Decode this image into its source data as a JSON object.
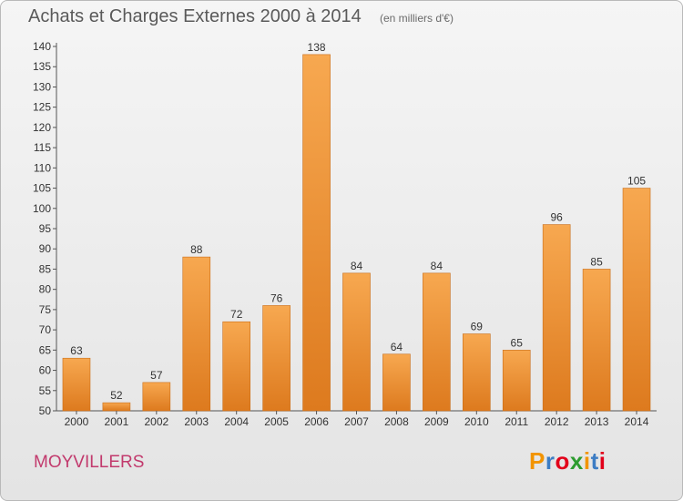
{
  "header": {
    "title": "Achats et Charges Externes 2000 à 2014",
    "unit": "(en milliers d'€)"
  },
  "footer": {
    "commune": "MOYVILLERS",
    "logo_letters": [
      "P",
      "r",
      "o",
      "x",
      "i",
      "t",
      "i"
    ],
    "logo_colors": [
      "#f29400",
      "#3d7dc4",
      "#e2001a",
      "#2d9c2f",
      "#f29400",
      "#3d7dc4",
      "#e2001a"
    ]
  },
  "colors": {
    "bar_light": "#f7a850",
    "bar_dark": "#dd7a1e",
    "commune_text": "#c23a6d"
  },
  "chart_data": {
    "type": "bar",
    "title": "Achats et Charges Externes 2000 à 2014",
    "subtitle": "(en milliers d'€)",
    "categories": [
      "2000",
      "2001",
      "2002",
      "2003",
      "2004",
      "2005",
      "2006",
      "2007",
      "2008",
      "2009",
      "2010",
      "2011",
      "2012",
      "2013",
      "2014"
    ],
    "values": [
      63,
      52,
      57,
      88,
      72,
      76,
      138,
      84,
      64,
      84,
      69,
      65,
      96,
      85,
      105
    ],
    "ylim": [
      50,
      140
    ],
    "yticks": [
      50,
      55,
      60,
      65,
      70,
      75,
      80,
      85,
      90,
      95,
      100,
      105,
      110,
      115,
      120,
      125,
      130,
      135,
      140
    ],
    "grid": false,
    "xlabel": "",
    "ylabel": ""
  }
}
